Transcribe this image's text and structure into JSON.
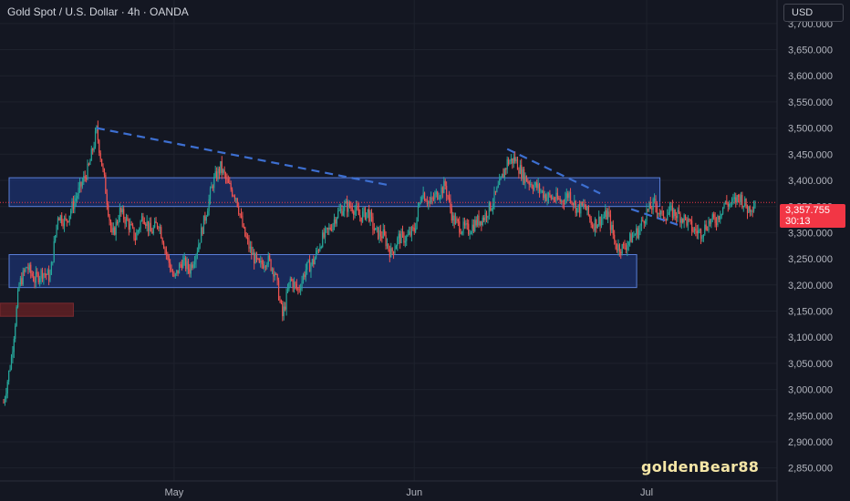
{
  "header": {
    "title": "Gold Spot / U.S. Dollar · 4h · OANDA"
  },
  "axis": {
    "currency_label": "USD"
  },
  "watermark": "goldenBear88",
  "last_price": {
    "value": "3,357.755",
    "countdown": "30:13"
  },
  "colors": {
    "background": "#141722",
    "up": "#26a69a",
    "down": "#ef5350",
    "zone_fill": "#1e3a8a",
    "zone_border": "#3b5bb5",
    "trendline": "#3d6fd1",
    "last_price": "#f23645",
    "resistance_old": "#5c1f24"
  },
  "chart_data": {
    "type": "candlestick",
    "symbol": "XAUUSD",
    "timeframe": "4h",
    "y_axis": {
      "ticks": [
        2850,
        2900,
        2950,
        3000,
        3050,
        3100,
        3150,
        3200,
        3250,
        3300,
        3350,
        3400,
        3450,
        3500,
        3550,
        3600,
        3650,
        3700
      ],
      "tick_labels": [
        "2,850.000",
        "2,900.000",
        "2,950.000",
        "3,000.000",
        "3,050.000",
        "3,100.000",
        "3,150.000",
        "3,200.000",
        "3,250.000",
        "3,300.000",
        "3,350.000",
        "3,400.000",
        "3,450.000",
        "3,500.000",
        "3,550.000",
        "3,600.000",
        "3,650.000",
        "3,700.000"
      ],
      "range": [
        2825,
        3745
      ]
    },
    "x_axis": {
      "labels": [
        "May",
        "Jun",
        "Jul"
      ],
      "range": [
        "2025-04-09",
        "2025-07-15"
      ],
      "label_dates": [
        "2025-05-01",
        "2025-06-01",
        "2025-07-01"
      ]
    },
    "price_path": [
      [
        "2025-04-09",
        2975
      ],
      [
        "2025-04-10",
        3060
      ],
      [
        "2025-04-11",
        3200
      ],
      [
        "2025-04-12",
        3235
      ],
      [
        "2025-04-13",
        3210
      ],
      [
        "2025-04-14",
        3225
      ],
      [
        "2025-04-15",
        3215
      ],
      [
        "2025-04-16",
        3335
      ],
      [
        "2025-04-17",
        3320
      ],
      [
        "2025-04-18",
        3355
      ],
      [
        "2025-04-19",
        3390
      ],
      [
        "2025-04-20",
        3425
      ],
      [
        "2025-04-21",
        3495
      ],
      [
        "2025-04-22",
        3400
      ],
      [
        "2025-04-23",
        3290
      ],
      [
        "2025-04-24",
        3340
      ],
      [
        "2025-04-25",
        3320
      ],
      [
        "2025-04-26",
        3290
      ],
      [
        "2025-04-27",
        3335
      ],
      [
        "2025-04-28",
        3300
      ],
      [
        "2025-04-29",
        3320
      ],
      [
        "2025-04-30",
        3260
      ],
      [
        "2025-05-01",
        3210
      ],
      [
        "2025-05-02",
        3245
      ],
      [
        "2025-05-03",
        3230
      ],
      [
        "2025-05-04",
        3270
      ],
      [
        "2025-05-05",
        3330
      ],
      [
        "2025-05-06",
        3395
      ],
      [
        "2025-05-07",
        3425
      ],
      [
        "2025-05-08",
        3390
      ],
      [
        "2025-05-09",
        3370
      ],
      [
        "2025-05-10",
        3300
      ],
      [
        "2025-05-11",
        3260
      ],
      [
        "2025-05-12",
        3235
      ],
      [
        "2025-05-13",
        3250
      ],
      [
        "2025-05-14",
        3225
      ],
      [
        "2025-05-15",
        3140
      ],
      [
        "2025-05-16",
        3210
      ],
      [
        "2025-05-17",
        3190
      ],
      [
        "2025-05-18",
        3230
      ],
      [
        "2025-05-19",
        3245
      ],
      [
        "2025-05-20",
        3285
      ],
      [
        "2025-05-21",
        3305
      ],
      [
        "2025-05-22",
        3335
      ],
      [
        "2025-05-23",
        3350
      ],
      [
        "2025-05-24",
        3350
      ],
      [
        "2025-05-25",
        3330
      ],
      [
        "2025-05-26",
        3340
      ],
      [
        "2025-05-27",
        3300
      ],
      [
        "2025-05-28",
        3295
      ],
      [
        "2025-05-29",
        3260
      ],
      [
        "2025-05-30",
        3290
      ],
      [
        "2025-05-31",
        3290
      ],
      [
        "2025-06-01",
        3305
      ],
      [
        "2025-06-02",
        3380
      ],
      [
        "2025-06-03",
        3355
      ],
      [
        "2025-06-04",
        3375
      ],
      [
        "2025-06-05",
        3390
      ],
      [
        "2025-06-06",
        3325
      ],
      [
        "2025-06-07",
        3310
      ],
      [
        "2025-06-08",
        3305
      ],
      [
        "2025-06-09",
        3320
      ],
      [
        "2025-06-10",
        3330
      ],
      [
        "2025-06-11",
        3355
      ],
      [
        "2025-06-12",
        3390
      ],
      [
        "2025-06-13",
        3435
      ],
      [
        "2025-06-14",
        3440
      ],
      [
        "2025-06-15",
        3410
      ],
      [
        "2025-06-16",
        3395
      ],
      [
        "2025-06-17",
        3385
      ],
      [
        "2025-06-18",
        3370
      ],
      [
        "2025-06-19",
        3365
      ],
      [
        "2025-06-20",
        3360
      ],
      [
        "2025-06-21",
        3375
      ],
      [
        "2025-06-22",
        3345
      ],
      [
        "2025-06-23",
        3350
      ],
      [
        "2025-06-24",
        3315
      ],
      [
        "2025-06-25",
        3325
      ],
      [
        "2025-06-26",
        3335
      ],
      [
        "2025-06-27",
        3275
      ],
      [
        "2025-06-28",
        3270
      ],
      [
        "2025-06-29",
        3290
      ],
      [
        "2025-06-30",
        3305
      ],
      [
        "2025-07-01",
        3340
      ],
      [
        "2025-07-02",
        3355
      ],
      [
        "2025-07-03",
        3330
      ],
      [
        "2025-07-04",
        3340
      ],
      [
        "2025-07-05",
        3335
      ],
      [
        "2025-07-06",
        3325
      ],
      [
        "2025-07-07",
        3305
      ],
      [
        "2025-07-08",
        3300
      ],
      [
        "2025-07-09",
        3320
      ],
      [
        "2025-07-10",
        3325
      ],
      [
        "2025-07-11",
        3355
      ],
      [
        "2025-07-12",
        3355
      ],
      [
        "2025-07-13",
        3370
      ],
      [
        "2025-07-14",
        3345
      ],
      [
        "2025-07-15",
        3357.755
      ]
    ],
    "zones": [
      {
        "from": "2025-04-09",
        "to": "2025-07-02",
        "top": 3405,
        "bottom": 3350
      },
      {
        "from": "2025-04-09",
        "to": "2025-06-29",
        "top": 3258,
        "bottom": 3195
      }
    ],
    "old_resistance_zone": {
      "from": "2025-04-09",
      "to": "2025-04-18",
      "top": 3165,
      "bottom": 3140
    },
    "trendlines": [
      {
        "from": [
          "2025-04-21",
          3500
        ],
        "to": [
          "2025-05-29",
          3390
        ]
      },
      {
        "from": [
          "2025-06-13",
          3460
        ],
        "to": [
          "2025-06-25",
          3375
        ]
      },
      {
        "from": [
          "2025-06-29",
          3345
        ],
        "to": [
          "2025-07-05",
          3315
        ]
      }
    ],
    "grid": true
  }
}
